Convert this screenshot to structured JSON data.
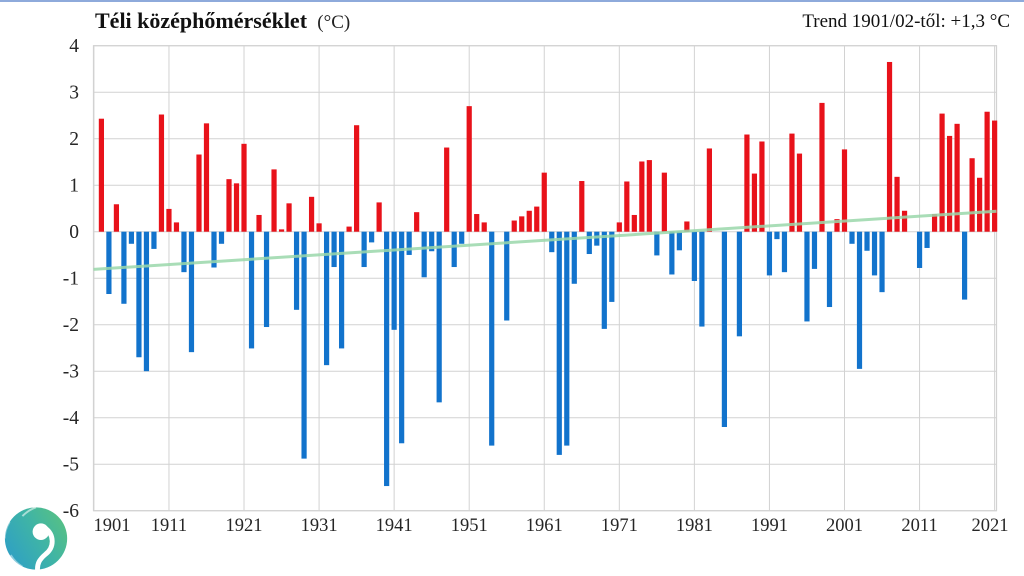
{
  "header": {
    "title": "Téli középhőmérséklet",
    "title_unit": "(°C)",
    "trend_label": "Trend 1901/02-től: +1,3 °C"
  },
  "page": {
    "top_border_color": "#8eaadb"
  },
  "logo": {
    "name": "spiral-swirl-logo",
    "color_start": "#2e9fc6",
    "color_mid": "#3fb4a6",
    "color_end": "#58c183"
  },
  "chart_data": {
    "type": "bar",
    "title": "Téli középhőmérséklet (°C)",
    "subtitle": "Trend 1901/02-től: +1,3 °C",
    "xlabel": "",
    "ylabel": "",
    "ylim": [
      -6,
      4
    ],
    "yticks": [
      4,
      3,
      2,
      1,
      0,
      -1,
      -2,
      -3,
      -4,
      -5,
      -6
    ],
    "xticks": [
      1901,
      1911,
      1921,
      1931,
      1941,
      1951,
      1961,
      1971,
      1981,
      1991,
      2001,
      2011,
      2021
    ],
    "grid": true,
    "legend_position": "none",
    "colors": {
      "positive": "#e8121a",
      "negative": "#1273cc",
      "trend": "#9bd8ab",
      "grid": "#d2d2d2",
      "axis_text": "#262626"
    },
    "trend_line": {
      "start_year": 1901,
      "end_year": 2021,
      "start_value": -0.81,
      "end_value": 0.44,
      "total_change_label": "+1,3 °C"
    },
    "points": [
      [
        1902,
        2.43
      ],
      [
        1903,
        -1.34
      ],
      [
        1904,
        0.59
      ],
      [
        1905,
        -1.55
      ],
      [
        1906,
        -0.26
      ],
      [
        1907,
        -2.7
      ],
      [
        1908,
        -3.0
      ],
      [
        1909,
        -0.37
      ],
      [
        1910,
        2.52
      ],
      [
        1911,
        0.49
      ],
      [
        1912,
        0.2
      ],
      [
        1913,
        -0.87
      ],
      [
        1914,
        -2.59
      ],
      [
        1915,
        1.66
      ],
      [
        1916,
        2.33
      ],
      [
        1917,
        -0.77
      ],
      [
        1918,
        -0.26
      ],
      [
        1919,
        1.13
      ],
      [
        1920,
        1.04
      ],
      [
        1921,
        1.89
      ],
      [
        1922,
        -2.51
      ],
      [
        1923,
        0.36
      ],
      [
        1924,
        -2.05
      ],
      [
        1925,
        1.34
      ],
      [
        1926,
        0.05
      ],
      [
        1927,
        0.61
      ],
      [
        1928,
        -1.68
      ],
      [
        1929,
        -4.88
      ],
      [
        1930,
        0.75
      ],
      [
        1931,
        0.18
      ],
      [
        1932,
        -2.87
      ],
      [
        1933,
        -0.76
      ],
      [
        1934,
        -2.51
      ],
      [
        1935,
        0.11
      ],
      [
        1936,
        2.29
      ],
      [
        1937,
        -0.76
      ],
      [
        1938,
        -0.23
      ],
      [
        1939,
        0.63
      ],
      [
        1940,
        -5.47
      ],
      [
        1941,
        -2.11
      ],
      [
        1942,
        -4.55
      ],
      [
        1943,
        -0.5
      ],
      [
        1944,
        0.42
      ],
      [
        1945,
        -0.98
      ],
      [
        1946,
        -0.42
      ],
      [
        1947,
        -3.67
      ],
      [
        1948,
        1.81
      ],
      [
        1949,
        -0.76
      ],
      [
        1950,
        -0.26
      ],
      [
        1951,
        2.7
      ],
      [
        1952,
        0.38
      ],
      [
        1953,
        0.2
      ],
      [
        1954,
        -4.6
      ],
      [
        1955,
        0.0
      ],
      [
        1956,
        -1.91
      ],
      [
        1957,
        0.24
      ],
      [
        1958,
        0.33
      ],
      [
        1959,
        0.45
      ],
      [
        1960,
        0.54
      ],
      [
        1961,
        1.27
      ],
      [
        1962,
        -0.44
      ],
      [
        1963,
        -4.8
      ],
      [
        1964,
        -4.6
      ],
      [
        1965,
        -1.12
      ],
      [
        1966,
        1.09
      ],
      [
        1967,
        -0.48
      ],
      [
        1968,
        -0.3
      ],
      [
        1969,
        -2.09
      ],
      [
        1970,
        -1.51
      ],
      [
        1971,
        0.2
      ],
      [
        1972,
        1.08
      ],
      [
        1973,
        0.36
      ],
      [
        1974,
        1.51
      ],
      [
        1975,
        1.54
      ],
      [
        1976,
        -0.51
      ],
      [
        1977,
        1.27
      ],
      [
        1978,
        -0.92
      ],
      [
        1979,
        -0.4
      ],
      [
        1980,
        0.22
      ],
      [
        1981,
        -1.06
      ],
      [
        1982,
        -2.04
      ],
      [
        1983,
        1.79
      ],
      [
        1984,
        0.0
      ],
      [
        1985,
        -4.2
      ],
      [
        1986,
        0.0
      ],
      [
        1987,
        -2.25
      ],
      [
        1988,
        2.09
      ],
      [
        1989,
        1.25
      ],
      [
        1990,
        1.94
      ],
      [
        1991,
        -0.94
      ],
      [
        1992,
        -0.16
      ],
      [
        1993,
        -0.87
      ],
      [
        1994,
        2.11
      ],
      [
        1995,
        1.68
      ],
      [
        1996,
        -1.93
      ],
      [
        1997,
        -0.8
      ],
      [
        1998,
        2.77
      ],
      [
        1999,
        -1.62
      ],
      [
        2000,
        0.27
      ],
      [
        2001,
        1.77
      ],
      [
        2002,
        -0.26
      ],
      [
        2003,
        -2.95
      ],
      [
        2004,
        -0.41
      ],
      [
        2005,
        -0.94
      ],
      [
        2006,
        -1.3
      ],
      [
        2007,
        3.65
      ],
      [
        2008,
        1.18
      ],
      [
        2009,
        0.45
      ],
      [
        2010,
        0.0
      ],
      [
        2011,
        -0.78
      ],
      [
        2012,
        -0.35
      ],
      [
        2013,
        0.38
      ],
      [
        2014,
        2.54
      ],
      [
        2015,
        2.06
      ],
      [
        2016,
        2.32
      ],
      [
        2017,
        -1.46
      ],
      [
        2018,
        1.58
      ],
      [
        2019,
        1.16
      ],
      [
        2020,
        2.58
      ],
      [
        2021,
        2.39
      ]
    ]
  }
}
